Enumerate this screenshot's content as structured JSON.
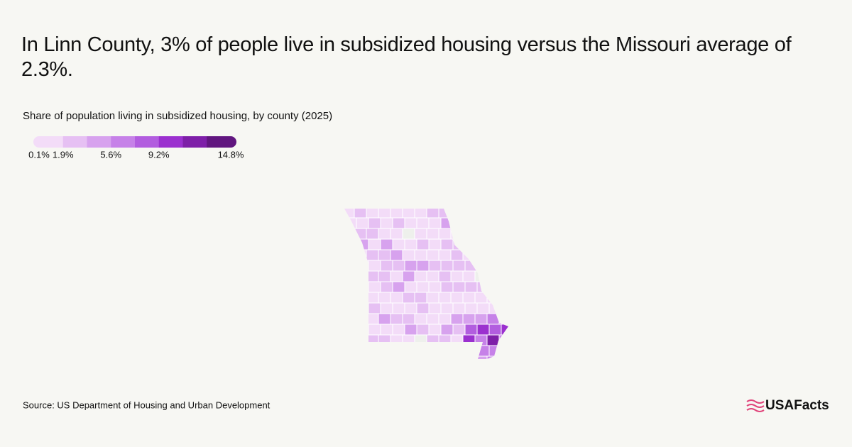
{
  "title": "In Linn County, 3% of people live in subsidized housing versus the Missouri average of 2.3%.",
  "subtitle": "Share of population living in subsidized housing, by county (2025)",
  "legend": {
    "colors": [
      "#f3dcf8",
      "#e6c0f3",
      "#d7a2ee",
      "#c681e8",
      "#b25ddf",
      "#9b30cf",
      "#7e1fa8",
      "#61167f"
    ],
    "edges": [
      {
        "value": 0.1,
        "label": "0.1%"
      },
      {
        "value": 1.9,
        "label": "1.9%"
      },
      null,
      {
        "value": 5.6,
        "label": "5.6%"
      },
      null,
      {
        "value": 9.2,
        "label": "9.2%"
      },
      null,
      null,
      {
        "value": 14.8,
        "label": "14.8%"
      }
    ]
  },
  "source": "Source: US Department of Housing and Urban Development",
  "logo": "USAFacts"
}
